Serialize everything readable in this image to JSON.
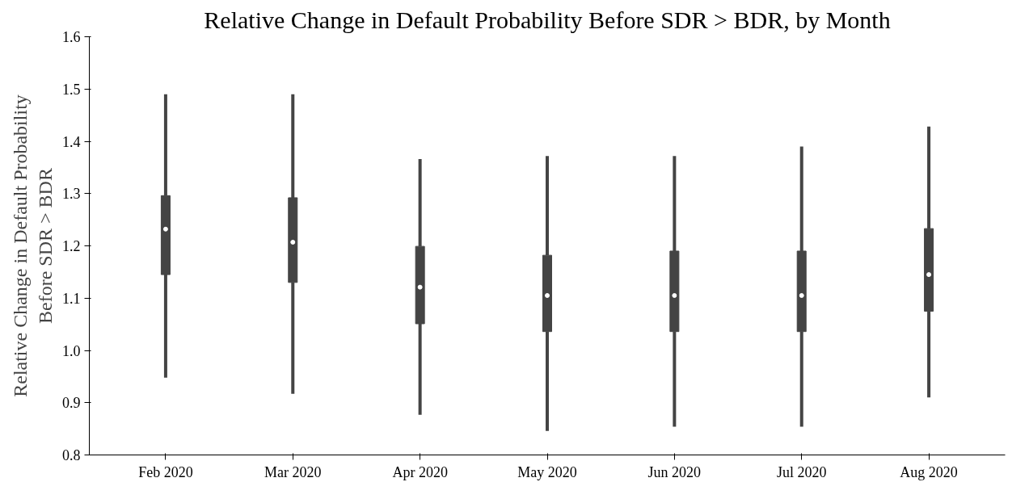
{
  "chart_data": {
    "type": "box",
    "title": "Relative Change in Default Probability Before SDR > BDR, by Month",
    "ylabel": "Relative Change in Default Probability\nBefore SDR > BDR",
    "categories": [
      "Feb 2020",
      "Mar 2020",
      "Apr 2020",
      "May 2020",
      "Jun 2020",
      "Jul 2020",
      "Aug 2020"
    ],
    "boxes": [
      {
        "low": 0.948,
        "q1": 1.145,
        "median": 1.232,
        "q3": 1.296,
        "high": 1.49
      },
      {
        "low": 0.917,
        "q1": 1.13,
        "median": 1.207,
        "q3": 1.292,
        "high": 1.49
      },
      {
        "low": 0.877,
        "q1": 1.051,
        "median": 1.121,
        "q3": 1.199,
        "high": 1.366
      },
      {
        "low": 0.846,
        "q1": 1.036,
        "median": 1.105,
        "q3": 1.182,
        "high": 1.372
      },
      {
        "low": 0.854,
        "q1": 1.036,
        "median": 1.105,
        "q3": 1.19,
        "high": 1.372
      },
      {
        "low": 0.854,
        "q1": 1.036,
        "median": 1.105,
        "q3": 1.19,
        "high": 1.39
      },
      {
        "low": 0.91,
        "q1": 1.075,
        "median": 1.145,
        "q3": 1.233,
        "high": 1.428
      }
    ],
    "color": "#444444",
    "ylim": [
      0.8,
      1.6
    ],
    "yticks": [
      0.8,
      0.9,
      {
        "value": 1.0,
        "label": "1.0"
      },
      1.1,
      1.2,
      1.3,
      1.4,
      1.5,
      1.6
    ],
    "grid": false
  }
}
